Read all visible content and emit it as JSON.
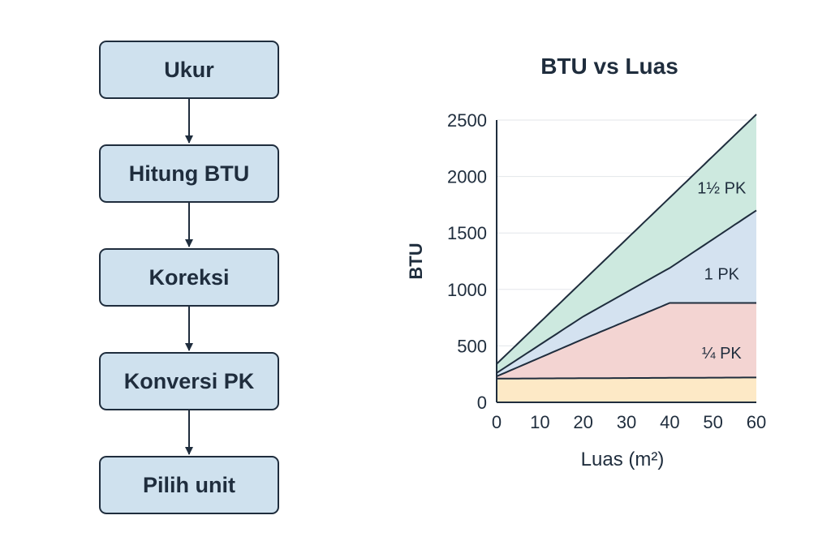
{
  "flowchart": {
    "steps": [
      {
        "id": "ukur",
        "label": "Ukur"
      },
      {
        "id": "hitung-btu",
        "label": "Hitung BTU"
      },
      {
        "id": "koreksi",
        "label": "Koreksi"
      },
      {
        "id": "konversi-pk",
        "label": "Konversi PK"
      },
      {
        "id": "pilih-unit",
        "label": "Pilih unit"
      }
    ],
    "colors": {
      "box_fill": "#cfe1ee",
      "box_border": "#1f2d3d",
      "arrow": "#1f2d3d"
    }
  },
  "chart_data": {
    "type": "area",
    "title": "BTU vs Luas",
    "xlabel": "Luas (m²)",
    "ylabel": "BTU",
    "xlim": [
      0,
      60
    ],
    "ylim": [
      0,
      2500
    ],
    "xticks": [
      0,
      10,
      20,
      30,
      40,
      50,
      60
    ],
    "yticks": [
      0,
      500,
      1000,
      1500,
      2000,
      2500
    ],
    "grid": "horizontal",
    "boundaries": [
      {
        "x": [
          0,
          60
        ],
        "y": [
          210,
          220
        ]
      },
      {
        "x": [
          0,
          20,
          40,
          60
        ],
        "y": [
          230,
          560,
          880,
          880
        ]
      },
      {
        "x": [
          0,
          20,
          40,
          60
        ],
        "y": [
          260,
          760,
          1190,
          1700
        ]
      },
      {
        "x": [
          0,
          60
        ],
        "y": [
          340,
          2550
        ]
      }
    ],
    "band_colors": [
      "#fde9c6",
      "#f3d4d2",
      "#d4e2f0",
      "#cde9df"
    ],
    "band_labels": [
      {
        "text": "¼ PK",
        "x": 52,
        "y": 440
      },
      {
        "text": "1 PK",
        "x": 52,
        "y": 1140
      },
      {
        "text": "1½ PK",
        "x": 52,
        "y": 1900
      }
    ]
  }
}
